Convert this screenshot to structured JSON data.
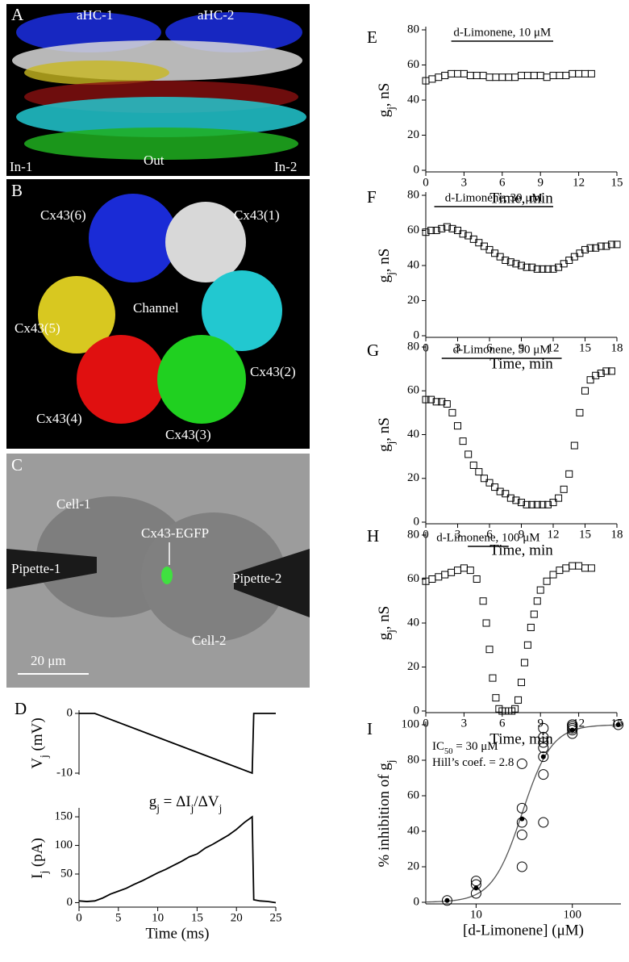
{
  "panels": [
    {
      "letter": "A",
      "labels": [
        "aHC-1",
        "aHC-2",
        "In-1",
        "Out",
        "In-2"
      ]
    },
    {
      "letter": "B",
      "labels": [
        "Cx43(6)",
        "Cx43(1)",
        "Channel",
        "Cx43(5)",
        "Cx43(2)",
        "Cx43(4)",
        "Cx43(3)"
      ]
    },
    {
      "letter": "C",
      "labels": [
        "Cell-1",
        "Cx43-EGFP",
        "Pipette-1",
        "Pipette-2",
        "Cell-2",
        "20 μm"
      ]
    }
  ],
  "chart_data": [
    {
      "type": "line",
      "letter": "D",
      "ylabel": [
        {
          "t": "V"
        },
        {
          "t": "j",
          "sub": true
        },
        {
          "t": " (mV)"
        }
      ],
      "x": [
        0,
        2,
        22,
        22.2,
        25
      ],
      "values": [
        0,
        0,
        -10,
        0,
        0
      ],
      "xlim": [
        0,
        25
      ],
      "ylim": [
        -10,
        0
      ],
      "yticks": [
        0,
        -10
      ],
      "color": "#000"
    },
    {
      "type": "line",
      "ylabel": [
        {
          "t": "I"
        },
        {
          "t": "j",
          "sub": true
        },
        {
          "t": " (pA)"
        }
      ],
      "xlabel": "Time (ms)",
      "note": [
        {
          "t": "g"
        },
        {
          "t": "j",
          "sub": true
        },
        {
          "t": " = ΔI"
        },
        {
          "t": "j",
          "sub": true
        },
        {
          "t": "/ΔV"
        },
        {
          "t": "j",
          "sub": true
        }
      ],
      "x": [
        0,
        1,
        2,
        3,
        4,
        5,
        6,
        7,
        8,
        9,
        10,
        11,
        12,
        13,
        14,
        15,
        16,
        17,
        18,
        19,
        20,
        21,
        22,
        22.2,
        23,
        24,
        25
      ],
      "values": [
        3,
        2,
        3,
        8,
        15,
        20,
        25,
        32,
        38,
        45,
        52,
        58,
        65,
        72,
        80,
        85,
        95,
        102,
        110,
        118,
        128,
        140,
        150,
        5,
        3,
        2,
        0
      ],
      "xlim": [
        0,
        25
      ],
      "xticks": [
        0,
        5,
        10,
        15,
        20,
        25
      ],
      "ylim": [
        -5,
        160
      ],
      "yticks": [
        0,
        50,
        100,
        150
      ],
      "color": "#000"
    },
    {
      "type": "scatter",
      "letter": "E",
      "marker": "square",
      "xlabel": "Time, min",
      "ylabel": [
        {
          "t": "g"
        },
        {
          "t": "j",
          "sub": true
        },
        {
          "t": ", nS"
        }
      ],
      "annotation": {
        "text": "d-Limonene, 10 μM",
        "x": [
          2,
          10
        ]
      },
      "x": [
        0,
        0.5,
        1,
        1.5,
        2,
        2.5,
        3,
        3.5,
        4,
        4.5,
        5,
        5.5,
        6,
        6.5,
        7,
        7.5,
        8,
        8.5,
        9,
        9.5,
        10,
        10.5,
        11,
        11.5,
        12,
        12.5,
        13
      ],
      "values": [
        51,
        52,
        53,
        54,
        55,
        55,
        55,
        54,
        54,
        54,
        53,
        53,
        53,
        53,
        53,
        54,
        54,
        54,
        54,
        53,
        54,
        54,
        54,
        55,
        55,
        55,
        55
      ],
      "xlim": [
        0,
        15
      ],
      "xticks": [
        0,
        3,
        6,
        9,
        12,
        15
      ],
      "ylim": [
        0,
        80
      ],
      "yticks": [
        0,
        20,
        40,
        60,
        80
      ]
    },
    {
      "type": "scatter",
      "letter": "F",
      "marker": "square",
      "xlabel": "Time, min",
      "ylabel": [
        {
          "t": "g"
        },
        {
          "t": "j",
          "sub": true
        },
        {
          "t": ", nS"
        }
      ],
      "annotation": {
        "text": "d-Limonene, 30 μM",
        "x": [
          0.8,
          12
        ]
      },
      "x": [
        0,
        0.5,
        1,
        1.5,
        2,
        2.5,
        3,
        3.5,
        4,
        4.5,
        5,
        5.5,
        6,
        6.5,
        7,
        7.5,
        8,
        8.5,
        9,
        9.5,
        10,
        10.5,
        11,
        11.5,
        12,
        12.5,
        13,
        13.5,
        14,
        14.5,
        15,
        15.5,
        16,
        16.5,
        17,
        17.5,
        18
      ],
      "values": [
        59,
        60,
        60,
        61,
        62,
        61,
        60,
        58,
        57,
        55,
        53,
        51,
        49,
        47,
        45,
        43,
        42,
        41,
        40,
        39,
        39,
        38,
        38,
        38,
        38,
        39,
        41,
        43,
        45,
        47,
        49,
        50,
        50,
        51,
        51,
        52,
        52
      ],
      "xlim": [
        0,
        18
      ],
      "xticks": [
        0,
        3,
        6,
        9,
        12,
        15,
        18
      ],
      "ylim": [
        0,
        80
      ],
      "yticks": [
        0,
        20,
        40,
        60,
        80
      ]
    },
    {
      "type": "scatter",
      "letter": "G",
      "marker": "square",
      "xlabel": "Time, min",
      "ylabel": [
        {
          "t": "g"
        },
        {
          "t": "j",
          "sub": true
        },
        {
          "t": ", nS"
        }
      ],
      "annotation": {
        "text": "d-Limonene, 50 μM",
        "x": [
          1.5,
          12.8
        ]
      },
      "x": [
        0,
        0.5,
        1,
        1.5,
        2,
        2.5,
        3,
        3.5,
        4,
        4.5,
        5,
        5.5,
        6,
        6.5,
        7,
        7.5,
        8,
        8.5,
        9,
        9.5,
        10,
        10.5,
        11,
        11.5,
        12,
        12.5,
        13,
        13.5,
        14,
        14.5,
        15,
        15.5,
        16,
        16.5,
        17,
        17.5
      ],
      "values": [
        56,
        56,
        55,
        55,
        54,
        50,
        44,
        37,
        31,
        26,
        23,
        20,
        18,
        16,
        14,
        13,
        11,
        10,
        9,
        8,
        8,
        8,
        8,
        8,
        9,
        11,
        15,
        22,
        35,
        50,
        60,
        65,
        67,
        68,
        69,
        69
      ],
      "xlim": [
        0,
        18
      ],
      "xticks": [
        0,
        3,
        6,
        9,
        12,
        15,
        18
      ],
      "ylim": [
        0,
        80
      ],
      "yticks": [
        0,
        20,
        40,
        60,
        80
      ]
    },
    {
      "type": "scatter",
      "letter": "H",
      "marker": "square",
      "xlabel": "Time, min",
      "ylabel": [
        {
          "t": "g"
        },
        {
          "t": "j",
          "sub": true
        },
        {
          "t": ", nS"
        }
      ],
      "annotation": {
        "text": "d-Limonene, 100 μM",
        "x": [
          3.3,
          6.5
        ]
      },
      "x": [
        0,
        0.5,
        1,
        1.5,
        2,
        2.5,
        3,
        3.5,
        4,
        4.5,
        4.75,
        5,
        5.25,
        5.5,
        5.75,
        6,
        6.25,
        6.5,
        6.75,
        7,
        7.25,
        7.5,
        7.75,
        8,
        8.25,
        8.5,
        8.75,
        9,
        9.5,
        10,
        10.5,
        11,
        11.5,
        12,
        12.5,
        13
      ],
      "values": [
        59,
        60,
        61,
        62,
        63,
        64,
        65,
        64,
        60,
        50,
        40,
        28,
        15,
        6,
        1,
        0,
        0,
        0,
        0,
        1,
        5,
        13,
        22,
        30,
        38,
        44,
        50,
        55,
        59,
        62,
        64,
        65,
        66,
        66,
        65,
        65
      ],
      "xlim": [
        0,
        15
      ],
      "xticks": [
        0,
        3,
        6,
        9,
        12,
        15
      ],
      "ylim": [
        0,
        80
      ],
      "yticks": [
        0,
        20,
        40,
        60,
        80
      ]
    },
    {
      "type": "scatter",
      "letter": "I",
      "log_x": true,
      "xlabel": "[d-Limonene] (μM)",
      "ylabel": [
        {
          "t": "% inhibition of g"
        },
        {
          "t": "j",
          "sub": true
        }
      ],
      "marker": "open-circle",
      "x": [
        5,
        10,
        10,
        10,
        30,
        30,
        30,
        30,
        30,
        50,
        50,
        50,
        50,
        50,
        50,
        50,
        100,
        100,
        100,
        100,
        100,
        100,
        300
      ],
      "values": [
        1,
        5,
        10,
        12,
        20,
        38,
        45,
        53,
        78,
        45,
        72,
        82,
        87,
        90,
        93,
        98,
        95,
        97,
        98,
        99,
        100,
        100,
        100
      ],
      "means": {
        "marker": "filled-circle",
        "x": [
          5,
          10,
          30,
          50,
          100,
          300
        ],
        "values": [
          1,
          8,
          47,
          82,
          97,
          100
        ]
      },
      "fit": {
        "ic50": 30,
        "hill": 2.8
      },
      "notes": [
        [
          {
            "t": "IC"
          },
          {
            "t": "50",
            "sub": true
          },
          {
            "t": " = 30 μM"
          }
        ],
        [
          {
            "t": "Hill’s coef. = 2.8"
          }
        ]
      ],
      "xlim": [
        3,
        320
      ],
      "xticks": [
        10,
        100
      ],
      "ylim": [
        0,
        100
      ],
      "yticks": [
        0,
        20,
        40,
        60,
        80,
        100
      ]
    }
  ]
}
